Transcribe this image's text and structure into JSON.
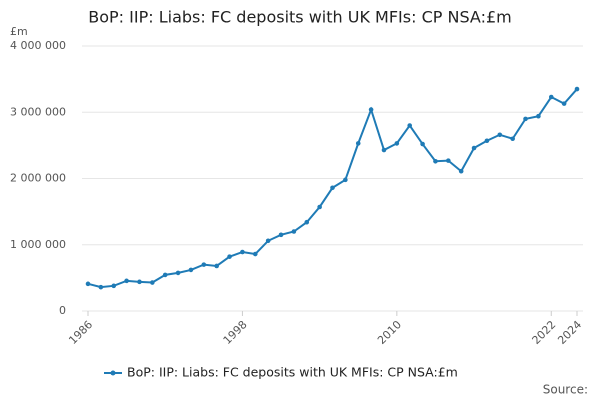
{
  "chart_data": {
    "type": "line",
    "title": "BoP: IIP: Liabs: FC deposits with UK MFIs: CP NSA:£m",
    "y_unit": "£m",
    "source": "Source:",
    "x": [
      1986,
      1987,
      1988,
      1989,
      1990,
      1991,
      1992,
      1993,
      1994,
      1995,
      1996,
      1997,
      1998,
      1999,
      2000,
      2001,
      2002,
      2003,
      2004,
      2005,
      2006,
      2007,
      2008,
      2009,
      2010,
      2011,
      2012,
      2013,
      2014,
      2015,
      2016,
      2017,
      2018,
      2019,
      2020,
      2021,
      2022,
      2023,
      2024
    ],
    "series": [
      {
        "name": "BoP: IIP: Liabs: FC deposits with UK MFIs: CP NSA:£m",
        "color": "#1f7bb6",
        "values": [
          410000,
          360000,
          380000,
          455000,
          440000,
          430000,
          545000,
          575000,
          620000,
          700000,
          680000,
          820000,
          890000,
          860000,
          1060000,
          1150000,
          1200000,
          1340000,
          1570000,
          1860000,
          1980000,
          2530000,
          3040000,
          2430000,
          2530000,
          2800000,
          2520000,
          2260000,
          2270000,
          2110000,
          2460000,
          2570000,
          2660000,
          2600000,
          2900000,
          2940000,
          3230000,
          3130000,
          3350000
        ]
      }
    ],
    "xlim": [
      1986,
      2024
    ],
    "xticks": [
      1986,
      1998,
      2010,
      2022,
      2024
    ],
    "ylim": [
      0,
      4000000
    ],
    "yticks": [
      0,
      {
        "value": 1000000,
        "label": "1 000 000"
      },
      {
        "value": 2000000,
        "label": "2 000 000"
      },
      {
        "value": 3000000,
        "label": "3 000 000"
      },
      {
        "value": 4000000,
        "label": "4 000 000"
      }
    ],
    "grid": true
  }
}
